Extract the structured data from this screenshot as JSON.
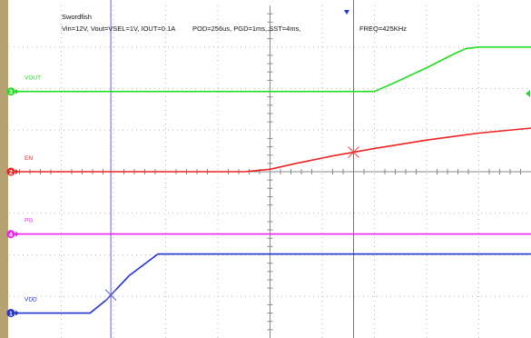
{
  "chart_data": {
    "type": "line",
    "header": {
      "title": "Swordfish",
      "conditions": "Vin=12V, Vout=VSEL=1V, IOUT=0.1A",
      "timing": "POD=256us, PGD=1ms, SST=4ms,",
      "freq": "FREQ=425KHz"
    },
    "x_divisions": 10,
    "y_divisions": 8,
    "series": [
      {
        "name": "VOUT",
        "channel": "3",
        "color": "#22dd22",
        "points": [
          [
            0,
            5.93
          ],
          [
            7.0,
            5.93
          ],
          [
            7.4,
            6.15
          ],
          [
            8.0,
            6.5
          ],
          [
            8.5,
            6.82
          ],
          [
            8.75,
            6.96
          ],
          [
            9.0,
            7.0
          ],
          [
            10.0,
            7.0
          ]
        ]
      },
      {
        "name": "EN",
        "channel": "2",
        "color": "#ee2222",
        "points": [
          [
            0,
            4.0
          ],
          [
            4.5,
            4.0
          ],
          [
            5.0,
            4.06
          ],
          [
            5.5,
            4.2
          ],
          [
            6.2,
            4.38
          ],
          [
            7.0,
            4.56
          ],
          [
            8.0,
            4.76
          ],
          [
            9.0,
            4.93
          ],
          [
            10.0,
            5.05
          ]
        ]
      },
      {
        "name": "PG",
        "channel": "4",
        "color": "#ee22ee",
        "points": [
          [
            0,
            2.5
          ],
          [
            10.0,
            2.5
          ]
        ]
      },
      {
        "name": "VDD",
        "channel": "1",
        "color": "#2233cc",
        "points": [
          [
            0,
            0.6
          ],
          [
            1.55,
            0.6
          ],
          [
            1.85,
            0.9
          ],
          [
            2.3,
            1.5
          ],
          [
            2.85,
            2.02
          ],
          [
            10.0,
            2.02
          ]
        ]
      }
    ],
    "cursors": [
      {
        "color": "#6666cc",
        "x": 1.95
      },
      {
        "color": "#ee4444",
        "x": 6.6
      }
    ],
    "trigger_x": 7.5
  }
}
